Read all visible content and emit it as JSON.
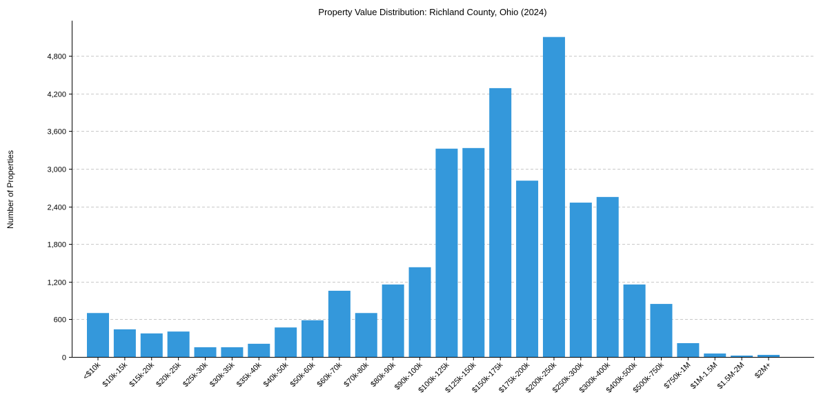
{
  "chart_data": {
    "type": "bar",
    "title": "Property Value Distribution: Richland County, Ohio (2024)",
    "xlabel": "",
    "ylabel": "Number of Properties",
    "ylim": [
      0,
      5350
    ],
    "yticks": [
      0,
      600,
      1200,
      1800,
      2400,
      3000,
      3600,
      4200,
      4800
    ],
    "ytick_labels": [
      "0",
      "600",
      "1,200",
      "1,800",
      "2,400",
      "3,000",
      "3,600",
      "4,200",
      "4,800"
    ],
    "grid": "y-dashed",
    "bar_color": "#3498db",
    "categories": [
      "<$10k",
      "$10k-15k",
      "$15k-20k",
      "$20k-25k",
      "$25k-30k",
      "$30k-35k",
      "$35k-40k",
      "$40k-50k",
      "$50k-60k",
      "$60k-70k",
      "$70k-80k",
      "$80k-90k",
      "$90k-100k",
      "$100k-125k",
      "$125k-150k",
      "$150k-175k",
      "$175k-200k",
      "$200k-250k",
      "$250k-300k",
      "$300k-400k",
      "$400k-500k",
      "$500k-750k",
      "$750k-1M",
      "$1M-1.5M",
      "$1.5M-2M",
      "$2M+"
    ],
    "values": [
      700,
      440,
      375,
      405,
      155,
      155,
      210,
      470,
      585,
      1055,
      700,
      1155,
      1430,
      3320,
      3330,
      4285,
      2810,
      5100,
      2460,
      2550,
      1155,
      845,
      220,
      55,
      22,
      33
    ]
  }
}
